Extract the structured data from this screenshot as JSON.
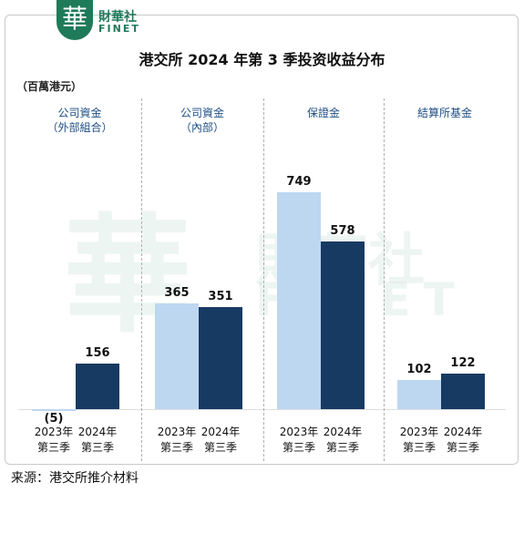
{
  "logo": {
    "mark": "華",
    "name": "財華社",
    "sub": "FINET"
  },
  "chart_data": {
    "type": "bar",
    "title": "港交所 2024 年第 3 季投资收益分布",
    "unit": "（百萬港元）",
    "categories": [
      "公司資金\n（外部組合）",
      "公司資金\n（內部）",
      "保證金",
      "結算所基金"
    ],
    "series": [
      {
        "name": "2023年\n第三季",
        "color": "#bdd7f1",
        "values": [
          -5,
          365,
          749,
          102
        ],
        "value_labels": [
          "(5)",
          "365",
          "749",
          "102"
        ]
      },
      {
        "name": "2024年\n第三季",
        "color": "#173a62",
        "values": [
          156,
          351,
          578,
          122
        ]
      }
    ],
    "source": "来源：港交所推介材料"
  }
}
